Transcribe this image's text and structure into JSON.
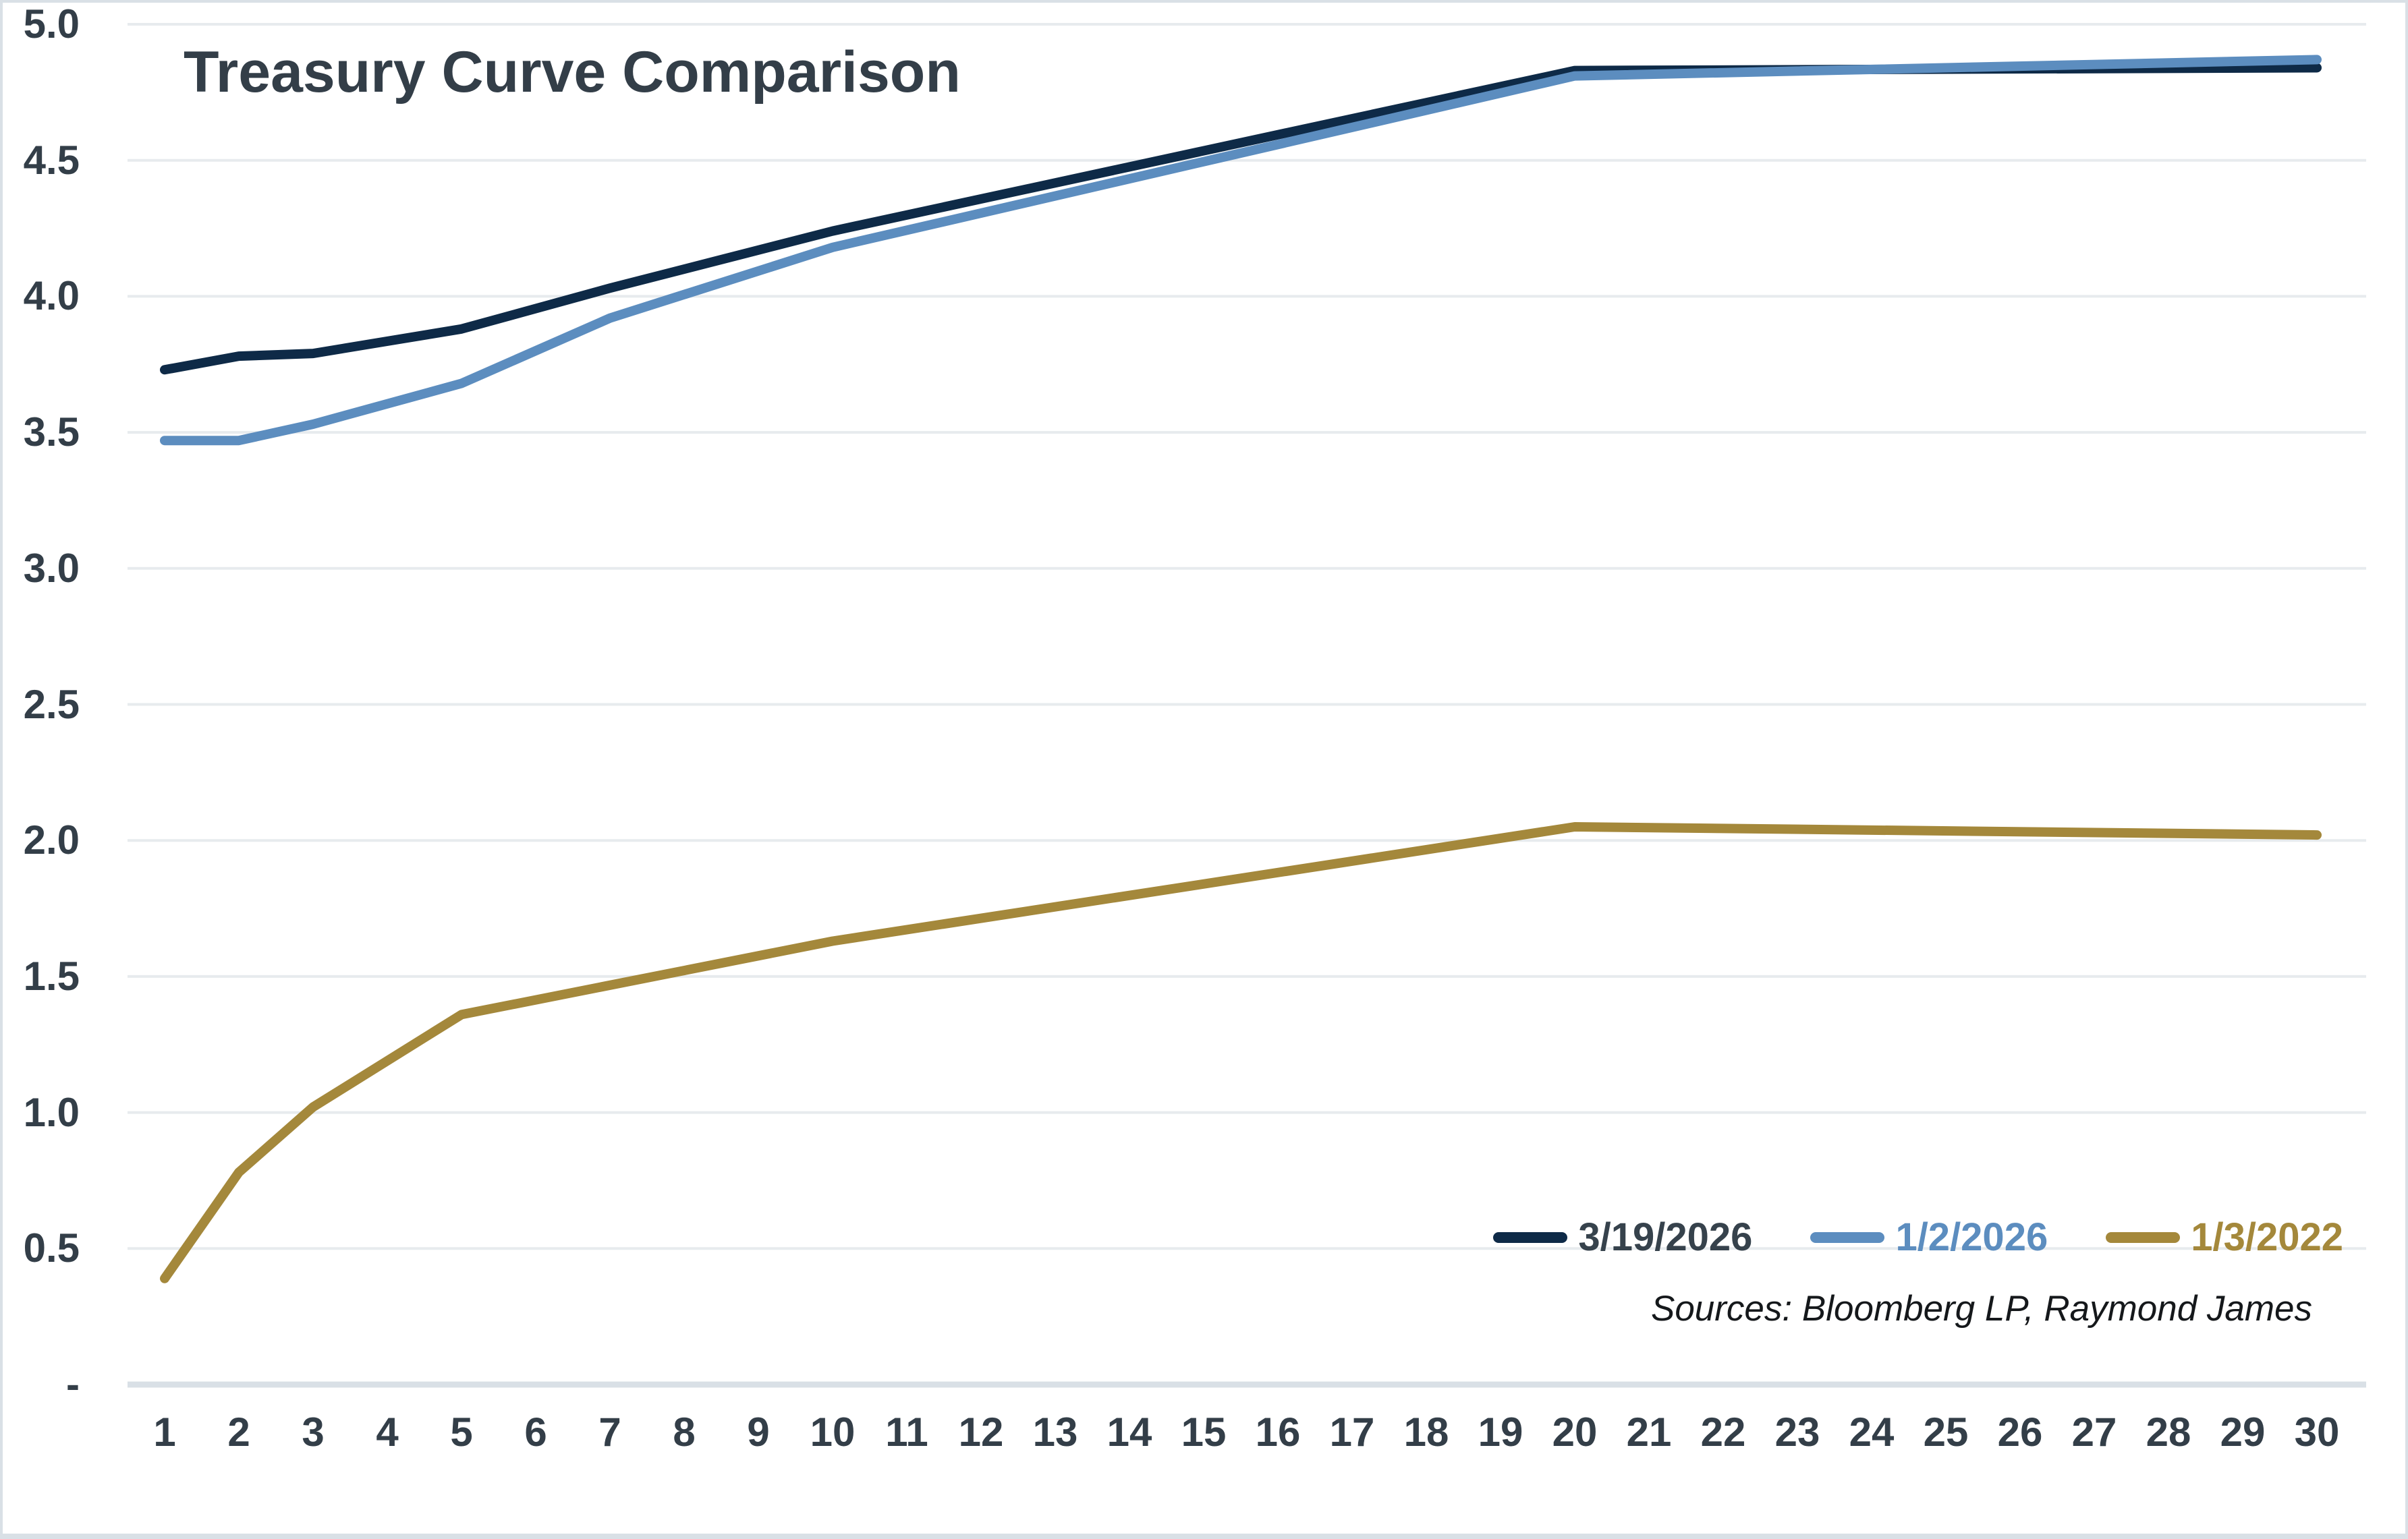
{
  "title": "Treasury Curve Comparison",
  "source_note": "Sources: Bloomberg LP, Raymond James",
  "colors": {
    "title_text": "#333E48",
    "axis_text": "#333E48",
    "gridline": "#E7EBEE",
    "axis_line": "#D9E0E6",
    "page_border": "#D9E0E6",
    "source_text": "#15181B"
  },
  "chart_data": {
    "type": "line",
    "title": "Treasury Curve Comparison",
    "xlabel": "",
    "ylabel": "",
    "xlim": [
      1,
      30
    ],
    "ylim": [
      0,
      5
    ],
    "grid": true,
    "legend_position": "bottom-right",
    "x_ticks": [
      1,
      2,
      3,
      4,
      5,
      6,
      7,
      8,
      9,
      10,
      11,
      12,
      13,
      14,
      15,
      16,
      17,
      18,
      19,
      20,
      21,
      22,
      23,
      24,
      25,
      26,
      27,
      28,
      29,
      30
    ],
    "y_ticks": [
      {
        "value": 5.0,
        "label": "5.0"
      },
      {
        "value": 4.5,
        "label": "4.5"
      },
      {
        "value": 4.0,
        "label": "4.0"
      },
      {
        "value": 3.5,
        "label": "3.5"
      },
      {
        "value": 3.0,
        "label": "3.0"
      },
      {
        "value": 2.5,
        "label": "2.5"
      },
      {
        "value": 2.0,
        "label": "2.0"
      },
      {
        "value": 1.5,
        "label": "1.5"
      },
      {
        "value": 1.0,
        "label": "1.0"
      },
      {
        "value": 0.5,
        "label": "0.5"
      },
      {
        "value": 0.0,
        "label": "-"
      }
    ],
    "series": [
      {
        "name": "3/19/2026",
        "color": "#0E2A47",
        "legend_text_color": "#36424C",
        "points": [
          [
            1,
            3.73
          ],
          [
            2,
            3.78
          ],
          [
            3,
            3.79
          ],
          [
            5,
            3.88
          ],
          [
            7,
            4.03
          ],
          [
            10,
            4.24
          ],
          [
            20,
            4.83
          ],
          [
            30,
            4.84
          ]
        ]
      },
      {
        "name": "1/2/2026",
        "color": "#5C8DBF",
        "legend_text_color": "#5C8DBF",
        "points": [
          [
            1,
            3.47
          ],
          [
            2,
            3.47
          ],
          [
            3,
            3.53
          ],
          [
            5,
            3.68
          ],
          [
            7,
            3.92
          ],
          [
            10,
            4.18
          ],
          [
            20,
            4.81
          ],
          [
            30,
            4.87
          ]
        ]
      },
      {
        "name": "1/3/2022",
        "color": "#A4883B",
        "legend_text_color": "#A4883B",
        "points": [
          [
            1,
            0.39
          ],
          [
            2,
            0.78
          ],
          [
            3,
            1.02
          ],
          [
            5,
            1.36
          ],
          [
            10,
            1.63
          ],
          [
            20,
            2.05
          ],
          [
            30,
            2.02
          ]
        ]
      }
    ]
  }
}
